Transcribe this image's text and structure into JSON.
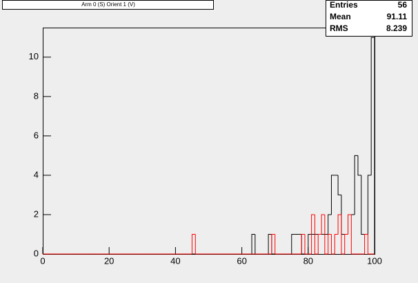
{
  "chart_data": {
    "type": "histogram",
    "title": "Arm 0 (S) Orient 1 (V)",
    "bins": [
      0,
      1,
      2,
      3,
      4,
      5,
      6,
      7,
      8,
      9,
      10,
      11,
      12,
      13,
      14,
      15,
      16,
      17,
      18,
      19,
      20,
      21,
      22,
      23,
      24,
      25,
      26,
      27,
      28,
      29,
      30,
      31,
      32,
      33,
      34,
      35,
      36,
      37,
      38,
      39,
      40,
      41,
      42,
      43,
      44,
      45,
      46,
      47,
      48,
      49,
      50,
      51,
      52,
      53,
      54,
      55,
      56,
      57,
      58,
      59,
      60,
      61,
      62,
      63,
      64,
      65,
      66,
      67,
      68,
      69,
      70,
      71,
      72,
      73,
      74,
      75,
      76,
      77,
      78,
      79,
      80,
      81,
      82,
      83,
      84,
      85,
      86,
      87,
      88,
      89,
      90,
      91,
      92,
      93,
      94,
      95,
      96,
      97,
      98,
      99,
      100
    ],
    "series": [
      {
        "color": "#000000",
        "values": [
          0,
          0,
          0,
          0,
          0,
          0,
          0,
          0,
          0,
          0,
          0,
          0,
          0,
          0,
          0,
          0,
          0,
          0,
          0,
          0,
          0,
          0,
          0,
          0,
          0,
          0,
          0,
          0,
          0,
          0,
          0,
          0,
          0,
          0,
          0,
          0,
          0,
          0,
          0,
          0,
          0,
          0,
          0,
          0,
          0,
          0,
          0,
          0,
          0,
          0,
          0,
          0,
          0,
          0,
          0,
          0,
          0,
          0,
          0,
          0,
          0,
          0,
          0,
          1,
          0,
          0,
          0,
          0,
          1,
          0,
          0,
          0,
          0,
          0,
          0,
          1,
          1,
          1,
          0,
          0,
          1,
          1,
          1,
          1,
          1,
          1,
          2,
          4,
          4,
          3,
          1,
          1,
          2,
          2,
          5,
          4,
          1,
          1,
          4,
          11
        ]
      },
      {
        "color": "#ff0000",
        "values": [
          0,
          0,
          0,
          0,
          0,
          0,
          0,
          0,
          0,
          0,
          0,
          0,
          0,
          0,
          0,
          0,
          0,
          0,
          0,
          0,
          0,
          0,
          0,
          0,
          0,
          0,
          0,
          0,
          0,
          0,
          0,
          0,
          0,
          0,
          0,
          0,
          0,
          0,
          0,
          0,
          0,
          0,
          0,
          0,
          0,
          1,
          0,
          0,
          0,
          0,
          0,
          0,
          0,
          0,
          0,
          0,
          0,
          0,
          0,
          0,
          0,
          0,
          0,
          0,
          0,
          0,
          0,
          0,
          0,
          1,
          0,
          0,
          0,
          0,
          0,
          0,
          0,
          0,
          1,
          0,
          0,
          2,
          0,
          1,
          2,
          0,
          1,
          0,
          1,
          2,
          0,
          1,
          2,
          0,
          0,
          0,
          0,
          1,
          0,
          0
        ]
      }
    ],
    "xlim": [
      0,
      100
    ],
    "xticks": [
      0,
      20,
      40,
      60,
      80,
      100
    ],
    "ylim": [
      0,
      11.5
    ],
    "yticks": [
      0,
      2,
      4,
      6,
      8,
      10
    ],
    "stats": [
      {
        "label": "Entries",
        "value": 56
      },
      {
        "label": "Mean",
        "value": 91.11
      },
      {
        "label": "RMS",
        "value": 8.239
      }
    ]
  }
}
